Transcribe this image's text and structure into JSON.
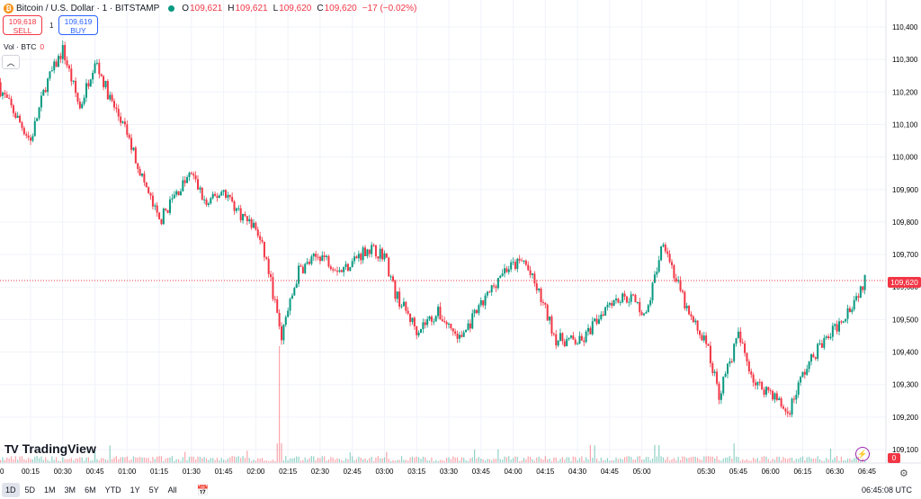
{
  "header": {
    "symbol_icon": "bitcoin-icon",
    "title": "Bitcoin / U.S. Dollar · 1 · BITSTAMP",
    "ohlc": [
      {
        "label": "O",
        "value": "109,621"
      },
      {
        "label": "H",
        "value": "109,621"
      },
      {
        "label": "L",
        "value": "109,620"
      },
      {
        "label": "C",
        "value": "109,620"
      }
    ],
    "change": "−17 (−0.02%)"
  },
  "trade": {
    "sell_price": "109,618",
    "sell_label": "SELL",
    "spread": "1",
    "buy_price": "109,619",
    "buy_label": "BUY"
  },
  "volume_legend": {
    "label": "Vol · BTC",
    "value": "0"
  },
  "price_axis": {
    "ticks": [
      "110,400",
      "110,300",
      "110,200",
      "110,100",
      "110,000",
      "109,900",
      "109,800",
      "109,700",
      "109,600",
      "109,500",
      "109,400",
      "109,300",
      "109,200",
      "109,100"
    ],
    "current_price": "109,620",
    "volume_value": "0"
  },
  "time_axis": {
    "ticks": [
      "0",
      "00:15",
      "00:30",
      "00:45",
      "01:00",
      "01:15",
      "01:30",
      "01:45",
      "02:00",
      "02:15",
      "02:30",
      "02:45",
      "03:00",
      "03:15",
      "03:30",
      "03:45",
      "04:00",
      "04:15",
      "04:30",
      "04:45",
      "05:00",
      "05:30",
      "05:45",
      "06:00",
      "06:15",
      "06:30",
      "06:45"
    ]
  },
  "branding": {
    "logo_mark": "TV",
    "logo_text": "TradingView"
  },
  "bottom_bar": {
    "ranges": [
      "1D",
      "5D",
      "1M",
      "3M",
      "6M",
      "YTD",
      "1Y",
      "5Y",
      "All"
    ],
    "active_range": "1D",
    "calendar_icon": "calendar-icon",
    "clock": "06:45:08 UTC"
  },
  "colors": {
    "up": "#089981",
    "down": "#f23645",
    "grid": "#f0f3fa",
    "accent": "#2962ff"
  },
  "chart_data": {
    "type": "candlestick",
    "symbol": "BTCUSD",
    "interval": "1",
    "ylim": [
      109080,
      110450
    ],
    "price_line": 109620,
    "path_anchors": [
      {
        "t": "23:59",
        "p": 110230
      },
      {
        "t": "00:15",
        "p": 110050
      },
      {
        "t": "00:22",
        "p": 110220
      },
      {
        "t": "00:30",
        "p": 110330
      },
      {
        "t": "00:38",
        "p": 110150
      },
      {
        "t": "00:45",
        "p": 110300
      },
      {
        "t": "00:52",
        "p": 110180
      },
      {
        "t": "01:00",
        "p": 110070
      },
      {
        "t": "01:08",
        "p": 109920
      },
      {
        "t": "01:15",
        "p": 109800
      },
      {
        "t": "01:22",
        "p": 109880
      },
      {
        "t": "01:30",
        "p": 109950
      },
      {
        "t": "01:37",
        "p": 109850
      },
      {
        "t": "01:45",
        "p": 109900
      },
      {
        "t": "01:52",
        "p": 109830
      },
      {
        "t": "02:00",
        "p": 109780
      },
      {
        "t": "02:05",
        "p": 109680
      },
      {
        "t": "02:12",
        "p": 109450
      },
      {
        "t": "02:20",
        "p": 109650
      },
      {
        "t": "02:30",
        "p": 109700
      },
      {
        "t": "02:40",
        "p": 109650
      },
      {
        "t": "02:52",
        "p": 109720
      },
      {
        "t": "03:00",
        "p": 109700
      },
      {
        "t": "03:05",
        "p": 109580
      },
      {
        "t": "03:15",
        "p": 109470
      },
      {
        "t": "03:25",
        "p": 109520
      },
      {
        "t": "03:35",
        "p": 109440
      },
      {
        "t": "03:45",
        "p": 109540
      },
      {
        "t": "03:55",
        "p": 109650
      },
      {
        "t": "04:05",
        "p": 109680
      },
      {
        "t": "04:12",
        "p": 109580
      },
      {
        "t": "04:20",
        "p": 109440
      },
      {
        "t": "04:32",
        "p": 109430
      },
      {
        "t": "04:45",
        "p": 109560
      },
      {
        "t": "04:55",
        "p": 109570
      },
      {
        "t": "05:02",
        "p": 109510
      },
      {
        "t": "05:10",
        "p": 109750
      },
      {
        "t": "05:15",
        "p": 109640
      },
      {
        "t": "05:22",
        "p": 109510
      },
      {
        "t": "05:30",
        "p": 109430
      },
      {
        "t": "05:36",
        "p": 109270
      },
      {
        "t": "05:45",
        "p": 109450
      },
      {
        "t": "05:53",
        "p": 109300
      },
      {
        "t": "06:00",
        "p": 109280
      },
      {
        "t": "06:08",
        "p": 109210
      },
      {
        "t": "06:15",
        "p": 109330
      },
      {
        "t": "06:22",
        "p": 109410
      },
      {
        "t": "06:30",
        "p": 109470
      },
      {
        "t": "06:38",
        "p": 109550
      },
      {
        "t": "06:45",
        "p": 109630
      }
    ],
    "volume": {
      "spike_time": "02:11",
      "spike_level": "high"
    }
  }
}
